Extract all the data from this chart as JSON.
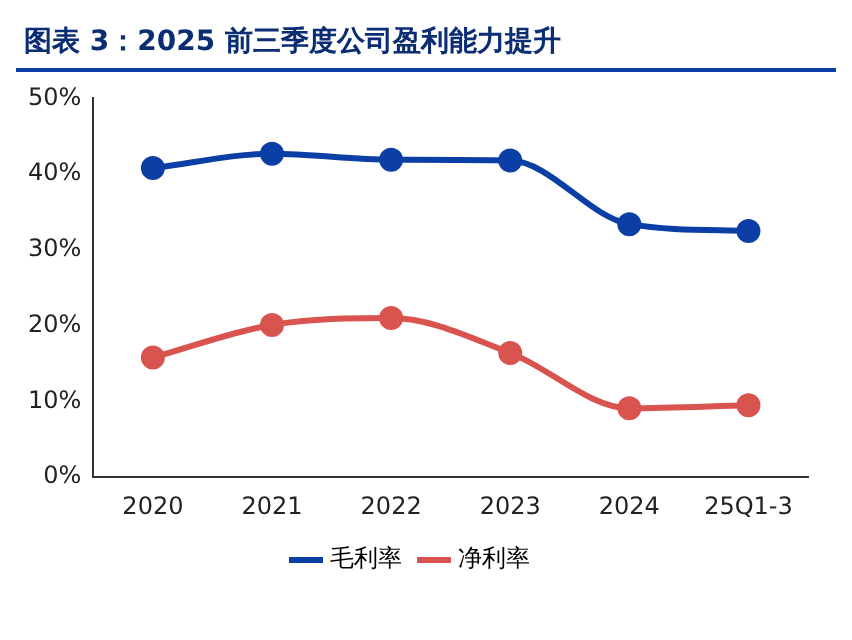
{
  "chart_data": {
    "type": "line",
    "title": "图表 3：2025 前三季度公司盈利能力提升",
    "categories": [
      "2020",
      "2021",
      "2022",
      "2023",
      "2024",
      "25Q1-3"
    ],
    "series": [
      {
        "name": "毛利率",
        "color": "#0b3fa6",
        "values": [
          40.8,
          42.7,
          41.9,
          41.8,
          33.4,
          32.5
        ]
      },
      {
        "name": "净利率",
        "color": "#d9534f",
        "values": [
          15.8,
          20.1,
          21.0,
          16.4,
          9.1,
          9.5
        ]
      }
    ],
    "ylim": [
      0,
      50
    ],
    "yticks": [
      {
        "value": 0,
        "label": "0%"
      },
      {
        "value": 10,
        "label": "10%"
      },
      {
        "value": 20,
        "label": "20%"
      },
      {
        "value": 30,
        "label": "30%"
      },
      {
        "value": 40,
        "label": "40%"
      },
      {
        "value": 50,
        "label": "50%"
      }
    ],
    "grid": false,
    "legend": "bottom",
    "marker": "circle",
    "line_style": "solid"
  }
}
